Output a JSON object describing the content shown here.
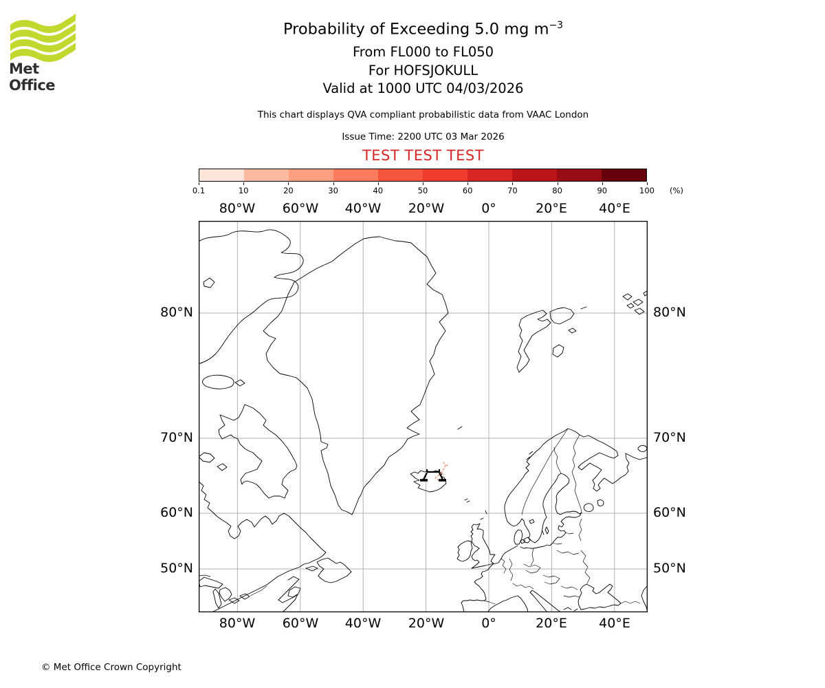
{
  "brand": {
    "logo_text": "Met Office",
    "logo_green": "#c1d82f",
    "logo_text_color": "#2f2f2f"
  },
  "titles": {
    "main": "Probability of Exceeding 5.0 mg m",
    "main_sup": "−3",
    "line2": "From FL000 to FL050",
    "line3": "For HOFSJOKULL",
    "line4": "Valid at 1000 UTC 04/03/2026",
    "note": "This chart displays QVA compliant probabilistic data from VAAC London",
    "issue": "Issue Time: 2200 UTC 03 Mar 2026",
    "test": "TEST TEST TEST",
    "test_color": "#d62728"
  },
  "colorbar": {
    "tick_labels": [
      "0.1",
      "10",
      "20",
      "30",
      "40",
      "50",
      "60",
      "70",
      "80",
      "90",
      "100"
    ],
    "unit_label": "(%)",
    "colors": [
      "#fee5d9",
      "#fcbba1",
      "#fc9e80",
      "#fb7c5c",
      "#f6553d",
      "#ef3b2c",
      "#d92523",
      "#bb151a",
      "#980c13",
      "#67000d"
    ]
  },
  "axes": {
    "top": [
      "80°W",
      "60°W",
      "40°W",
      "20°W",
      "0°",
      "20°E",
      "40°E"
    ],
    "bottom": [
      "80°W",
      "60°W",
      "40°W",
      "20°W",
      "0°",
      "20°E",
      "40°E"
    ],
    "left": [
      "80°N",
      "70°N",
      "60°N",
      "50°N"
    ],
    "right": [
      "80°N",
      "70°N",
      "60°N",
      "50°N"
    ]
  },
  "footer": {
    "copyright": "© Met Office Crown Copyright"
  },
  "chart_data": {
    "type": "heatmap",
    "title": "Probability of Exceeding 5.0 mg m−3",
    "subtitle": [
      "From FL000 to FL050",
      "For HOFSJOKULL",
      "Valid at 1000 UTC 04/03/2026"
    ],
    "projection": "mercator",
    "x": {
      "label": "longitude",
      "ticks_deg": [
        -80,
        -60,
        -40,
        -20,
        0,
        20,
        40
      ],
      "range_deg": [
        -92.6,
        50.3
      ]
    },
    "y": {
      "label": "latitude",
      "ticks_deg": [
        80,
        70,
        60,
        50
      ],
      "range_deg": [
        40.3,
        84.0
      ]
    },
    "grid": true,
    "colorbar_scale_percent": [
      0.1,
      10,
      20,
      30,
      40,
      50,
      60,
      70,
      80,
      90,
      100
    ],
    "colorbar_unit": "(%)",
    "series": [
      {
        "name": "exceedance-probability-contour",
        "description": "Small low-probability (0.1–10%) ash contour fragments immediately north-east of Hofsjokull volcano, Iceland",
        "approx_lon_lat": [
          [
            -18.5,
            65.2
          ],
          [
            -17.6,
            65.7
          ],
          [
            -16.9,
            66.1
          ]
        ],
        "value_percent": "0.1-10"
      },
      {
        "name": "volcano-marker",
        "description": "Volcano symbol at Hofsjokull, Iceland",
        "approx_lon_lat": [
          [
            -18.9,
            64.8
          ]
        ]
      }
    ]
  }
}
